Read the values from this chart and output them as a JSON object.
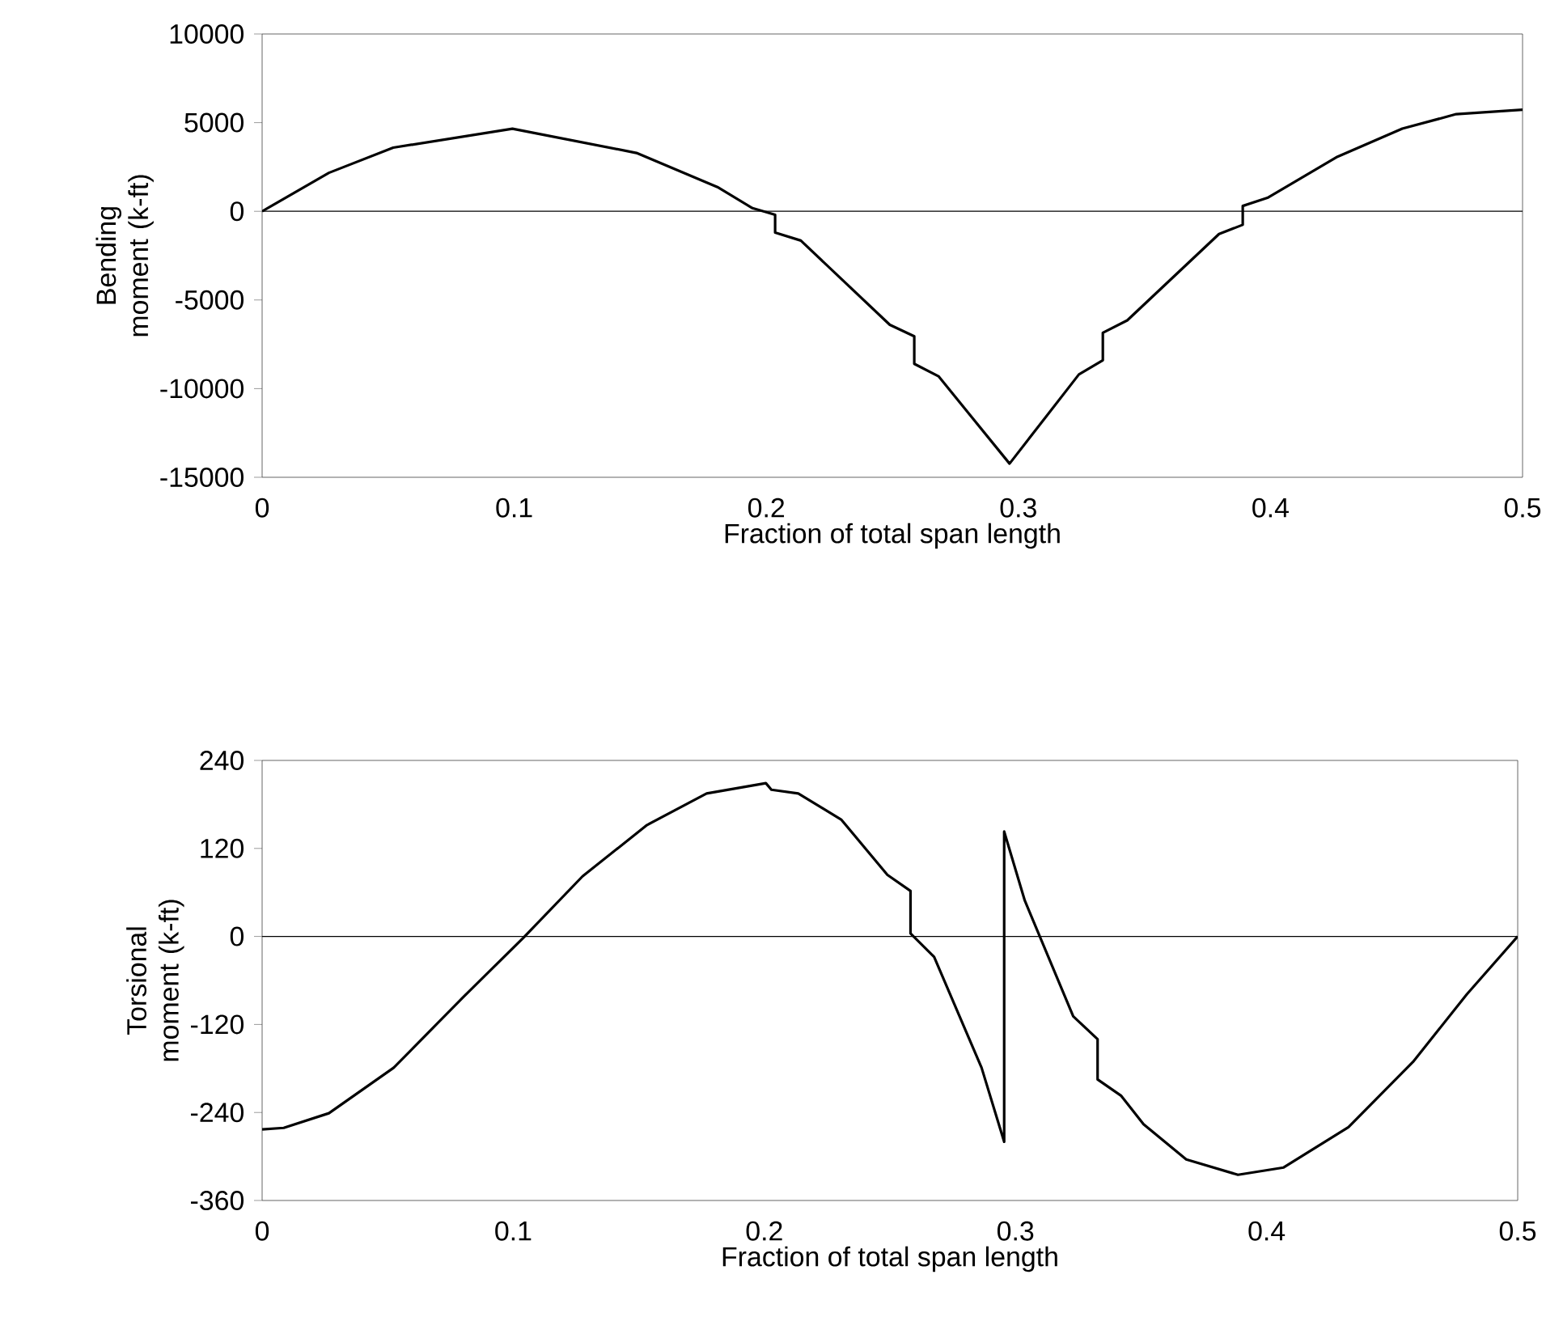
{
  "chart_data": [
    {
      "type": "line",
      "xlabel": "Fraction of total span length",
      "ylabel": "Bending moment (k-ft)",
      "xlim": [
        0,
        0.5
      ],
      "xticks": [
        0,
        0.1,
        0.2,
        0.3,
        0.4,
        0.5
      ],
      "ylim": [
        -15000,
        10000
      ],
      "yticks": [
        -15000,
        -10000,
        -5000,
        0,
        5000,
        10000
      ],
      "ref_lines": [
        {
          "axis": "y",
          "value": 0
        }
      ],
      "series": [
        {
          "color": "#000000",
          "x": [
            0,
            0.0265,
            0.052,
            0.0993,
            0.1485,
            0.1806,
            0.1945,
            0.2,
            0.2035,
            0.2035,
            0.2137,
            0.249,
            0.2587,
            0.2587,
            0.2683,
            0.2965,
            0.324,
            0.3335,
            0.3335,
            0.3432,
            0.3796,
            0.389,
            0.389,
            0.3988,
            0.4266,
            0.4523,
            0.4737,
            0.5
          ],
          "values": [
            0,
            2170,
            3590,
            4660,
            3290,
            1370,
            180,
            -50,
            -200,
            -1200,
            -1650,
            -6400,
            -7050,
            -8600,
            -9300,
            -14230,
            -9200,
            -8400,
            -6850,
            -6150,
            -1280,
            -760,
            300,
            760,
            3080,
            4660,
            5480,
            5730
          ]
        }
      ]
    },
    {
      "type": "line",
      "xlabel": "Fraction of total span length",
      "ylabel": "Torsional moment (k-ft)",
      "xlim": [
        0,
        0.5
      ],
      "xticks": [
        0,
        0.1,
        0.2,
        0.3,
        0.4,
        0.5
      ],
      "ylim": [
        -360,
        240
      ],
      "yticks": [
        -360,
        -240,
        -120,
        0,
        120,
        240
      ],
      "ref_lines": [
        {
          "axis": "y",
          "value": 0
        }
      ],
      "series": [
        {
          "color": "#000000",
          "x": [
            0,
            0.0086,
            0.0266,
            0.0524,
            0.08,
            0.104,
            0.1276,
            0.1533,
            0.177,
            0.2006,
            0.2028,
            0.2135,
            0.2307,
            0.249,
            0.2582,
            0.2582,
            0.2676,
            0.2865,
            0.2955,
            0.2955,
            0.3037,
            0.323,
            0.3327,
            0.3327,
            0.342,
            0.351,
            0.368,
            0.3886,
            0.4068,
            0.4326,
            0.4583,
            0.4797,
            0.5
          ],
          "values": [
            -263,
            -261,
            -241,
            -179,
            -83,
            -2,
            82,
            152,
            195,
            209,
            200,
            195,
            159,
            84,
            62,
            4,
            -28,
            -179,
            -280,
            143,
            49,
            -109,
            -140,
            -195,
            -217,
            -256,
            -304,
            -325,
            -315,
            -260,
            -171,
            -79,
            0
          ]
        }
      ]
    }
  ]
}
